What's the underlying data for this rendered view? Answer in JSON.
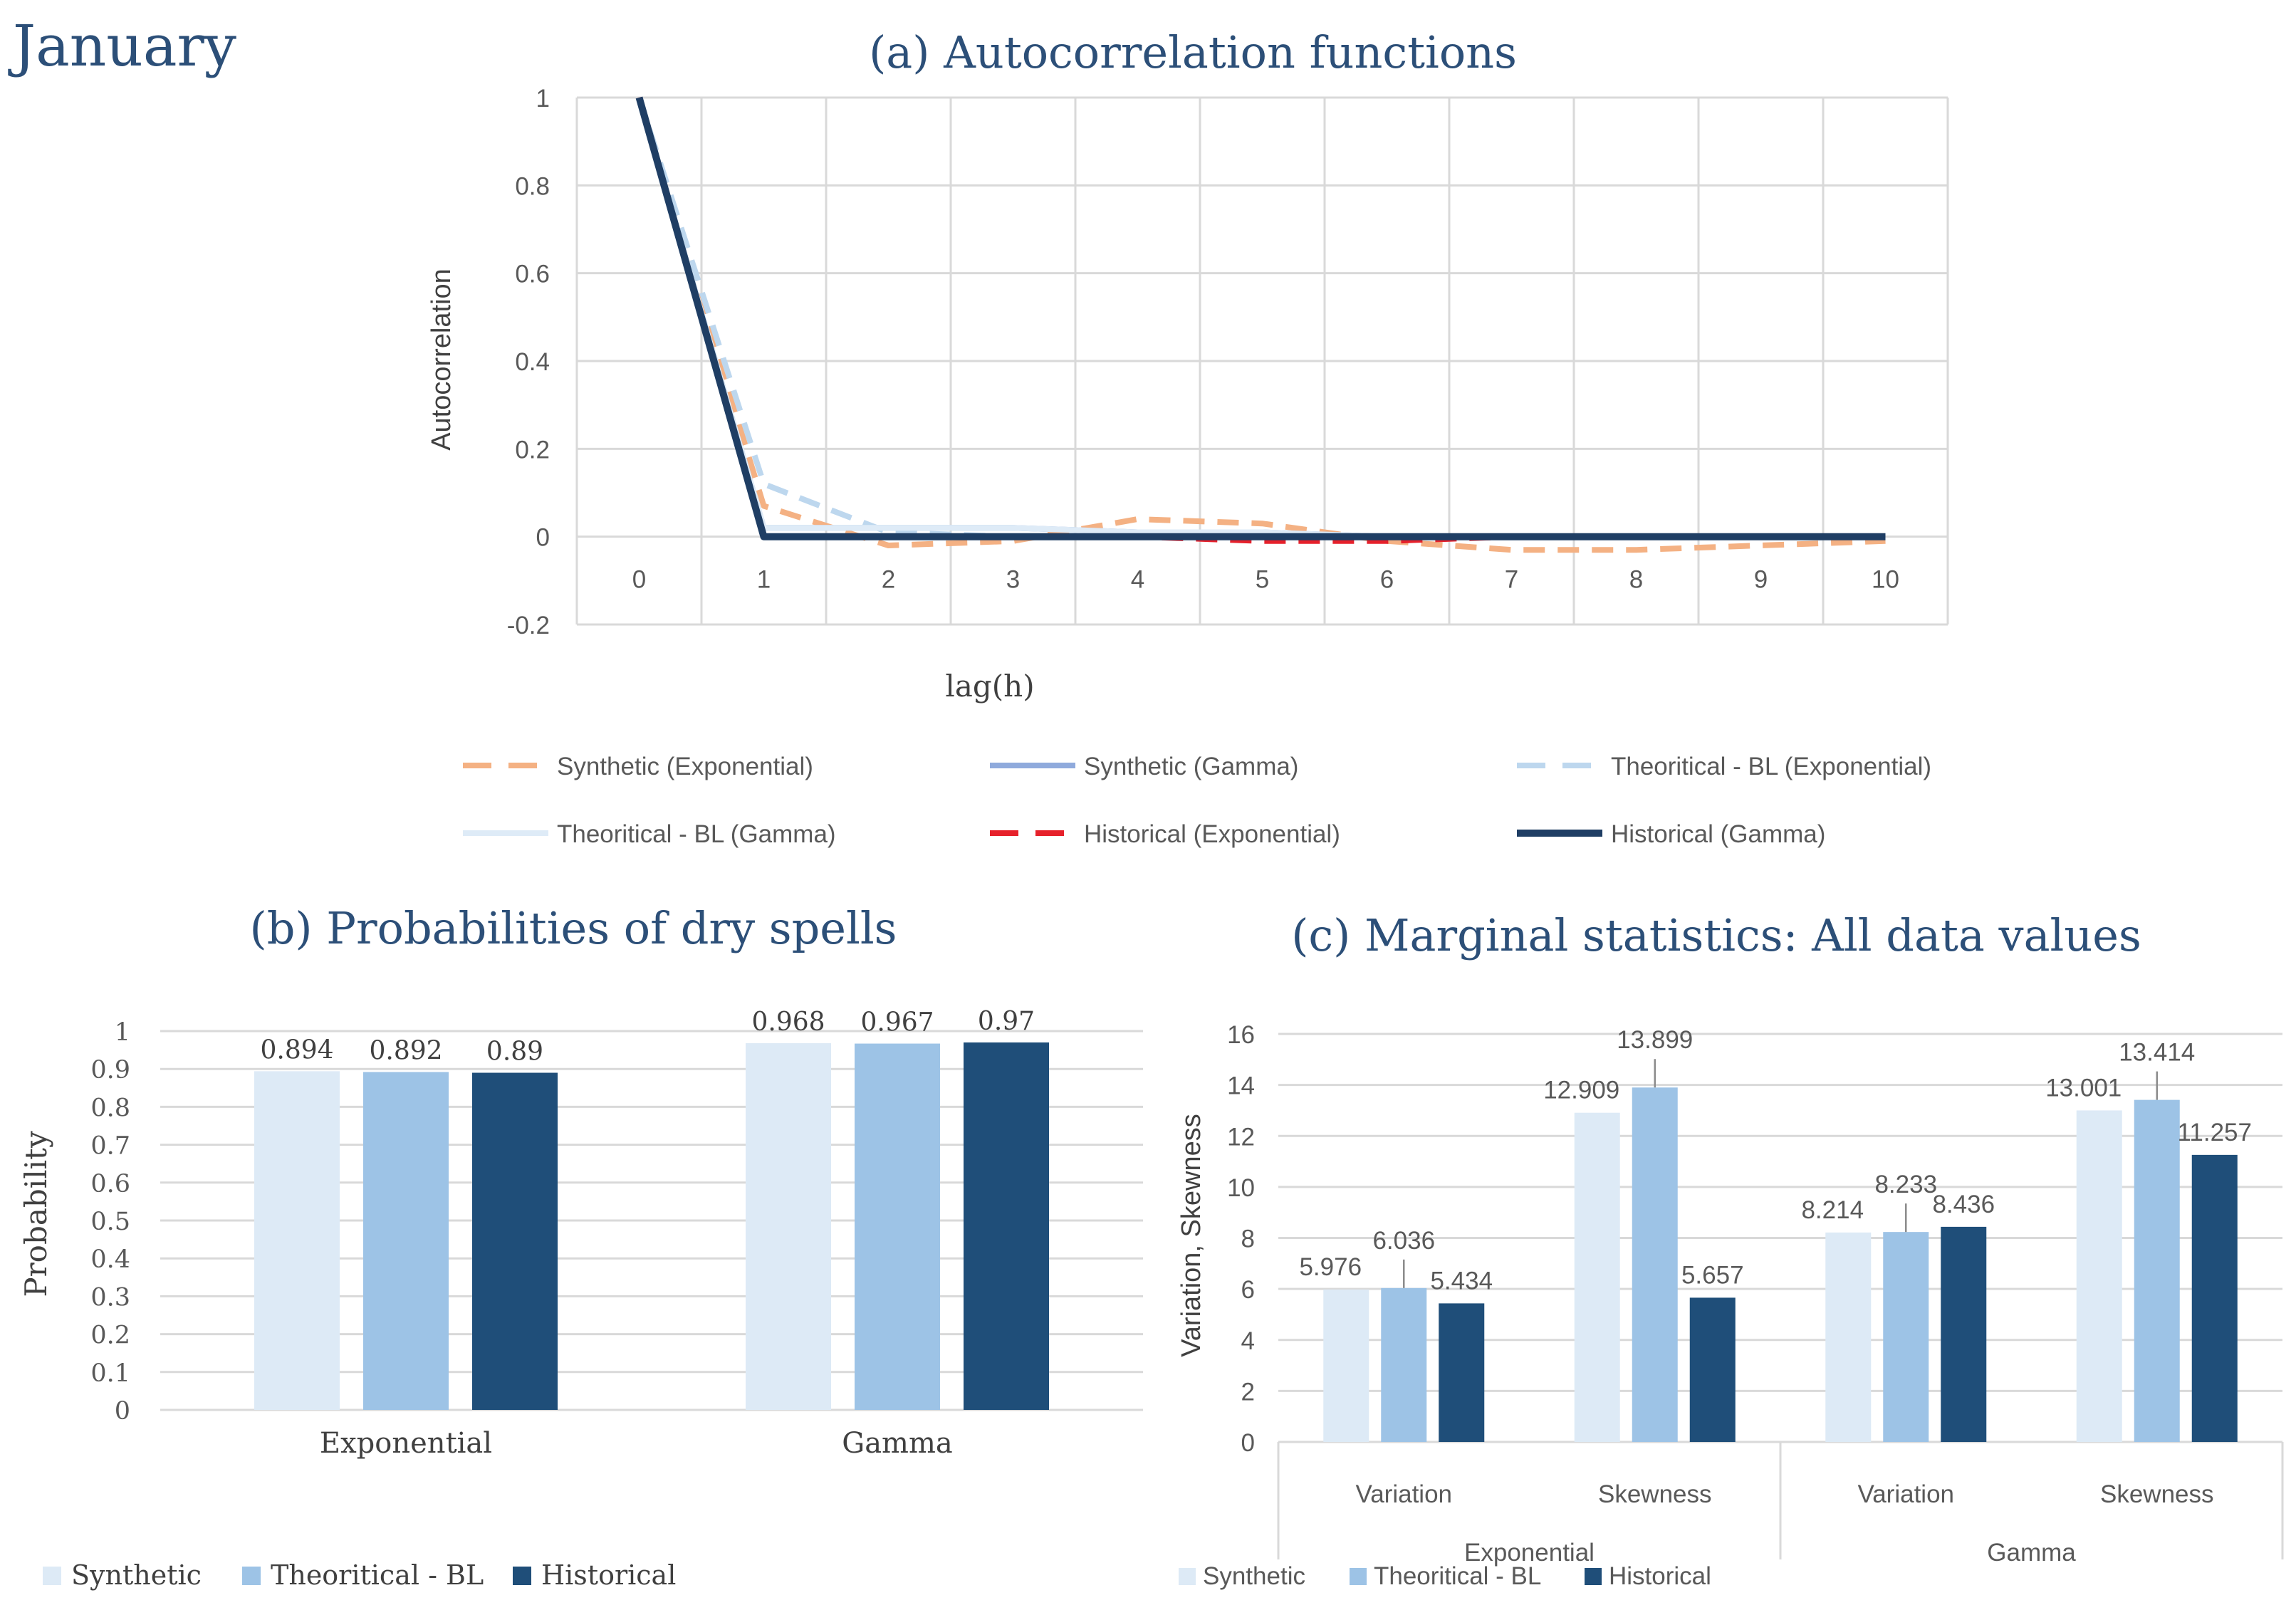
{
  "page_title": "January",
  "colors": {
    "title": "#2c4f78",
    "grid": "#d9d9d9",
    "axis_text": "#595959",
    "synthetic": "#ddeaf6",
    "theoretical": "#9dc3e6",
    "historical": "#1f4e79"
  },
  "chart_data": [
    {
      "type": "line",
      "title": "(a) Autocorrelation functions",
      "xlabel": "lag(h)",
      "ylabel": "Autocorrelation",
      "x": [
        0,
        1,
        2,
        3,
        4,
        5,
        6,
        7,
        8,
        9,
        10
      ],
      "xticks": [
        "0",
        "1",
        "2",
        "3",
        "4",
        "5",
        "6",
        "7",
        "8",
        "9",
        "10"
      ],
      "yticks": [
        "1",
        "0.8",
        "0.6",
        "0.4",
        "0.2",
        "0",
        "-0.2"
      ],
      "ylim": [
        -0.2,
        1
      ],
      "grid": true,
      "legend_position": "bottom",
      "series": [
        {
          "name": "Synthetic (Exponential)",
          "color": "#f4b183",
          "style": "dashed",
          "values": [
            1,
            0.07,
            -0.02,
            -0.01,
            0.04,
            0.03,
            -0.01,
            -0.03,
            -0.03,
            -0.02,
            -0.01
          ]
        },
        {
          "name": "Synthetic (Gamma)",
          "color": "#8faadc",
          "style": "solid",
          "values": [
            1,
            0.02,
            0.02,
            0.02,
            0.01,
            0.01,
            0.0,
            0.0,
            0.0,
            0.0,
            0.0
          ]
        },
        {
          "name": "Theoritical - BL (Exponential)",
          "color": "#bdd7ee",
          "style": "dashed",
          "values": [
            1,
            0.12,
            0.01,
            0.0,
            0.0,
            0.0,
            0.0,
            0.0,
            0.0,
            0.0,
            0.0
          ]
        },
        {
          "name": "Theoritical - BL (Gamma)",
          "color": "#deebf7",
          "style": "solid",
          "values": [
            1,
            0.02,
            0.02,
            0.02,
            0.01,
            0.01,
            0.0,
            0.0,
            0.0,
            0.0,
            0.0
          ]
        },
        {
          "name": "Historical (Exponential)",
          "color": "#e6212b",
          "style": "dashed",
          "values": [
            1,
            0.0,
            0.0,
            0.0,
            0.0,
            -0.01,
            -0.01,
            0.0,
            0.0,
            0.0,
            0.0
          ]
        },
        {
          "name": "Historical (Gamma)",
          "color": "#1f3e64",
          "style": "solid",
          "values": [
            1,
            0.0,
            0.0,
            0.0,
            0.0,
            0.0,
            0.0,
            0.0,
            0.0,
            0.0,
            0.0
          ]
        }
      ]
    },
    {
      "type": "bar",
      "title": "(b) Probabilities of dry spells",
      "xlabel": "",
      "ylabel": "Probability",
      "categories": [
        "Exponential",
        "Gamma"
      ],
      "yticks": [
        "1",
        "0.9",
        "0.8",
        "0.7",
        "0.6",
        "0.5",
        "0.4",
        "0.3",
        "0.2",
        "0.1",
        "0"
      ],
      "ylim": [
        0,
        1
      ],
      "grid": true,
      "legend_position": "bottom-left",
      "series": [
        {
          "name": "Synthetic",
          "values": [
            0.894,
            0.968
          ],
          "labels": [
            "0.894",
            "0.968"
          ]
        },
        {
          "name": "Theoritical - BL",
          "values": [
            0.892,
            0.967
          ],
          "labels": [
            "0.892",
            "0.967"
          ]
        },
        {
          "name": "Historical",
          "values": [
            0.89,
            0.97
          ],
          "labels": [
            "0.89",
            "0.97"
          ]
        }
      ]
    },
    {
      "type": "bar",
      "title": "(c) Marginal statistics: All data values",
      "xlabel": "",
      "ylabel": "Variation, Skewness",
      "groups": [
        "Exponential",
        "Gamma"
      ],
      "categories": [
        "Variation",
        "Skewness",
        "Variation",
        "Skewness"
      ],
      "yticks": [
        "16",
        "14",
        "12",
        "10",
        "8",
        "6",
        "4",
        "2",
        "0"
      ],
      "ylim": [
        0,
        16
      ],
      "grid": true,
      "legend_position": "bottom-left",
      "series": [
        {
          "name": "Synthetic",
          "values": [
            5.976,
            12.909,
            8.214,
            13.001
          ],
          "labels": [
            "5.976",
            "12.909",
            "8.214",
            "13.001"
          ]
        },
        {
          "name": "Theoritical - BL",
          "values": [
            6.036,
            13.899,
            8.233,
            13.414
          ],
          "labels": [
            "6.036",
            "13.899",
            "8.233",
            "13.414"
          ]
        },
        {
          "name": "Historical",
          "values": [
            5.434,
            5.657,
            8.436,
            11.257
          ],
          "labels": [
            "5.434",
            "5.657",
            "8.436",
            "11.257"
          ]
        }
      ]
    }
  ]
}
